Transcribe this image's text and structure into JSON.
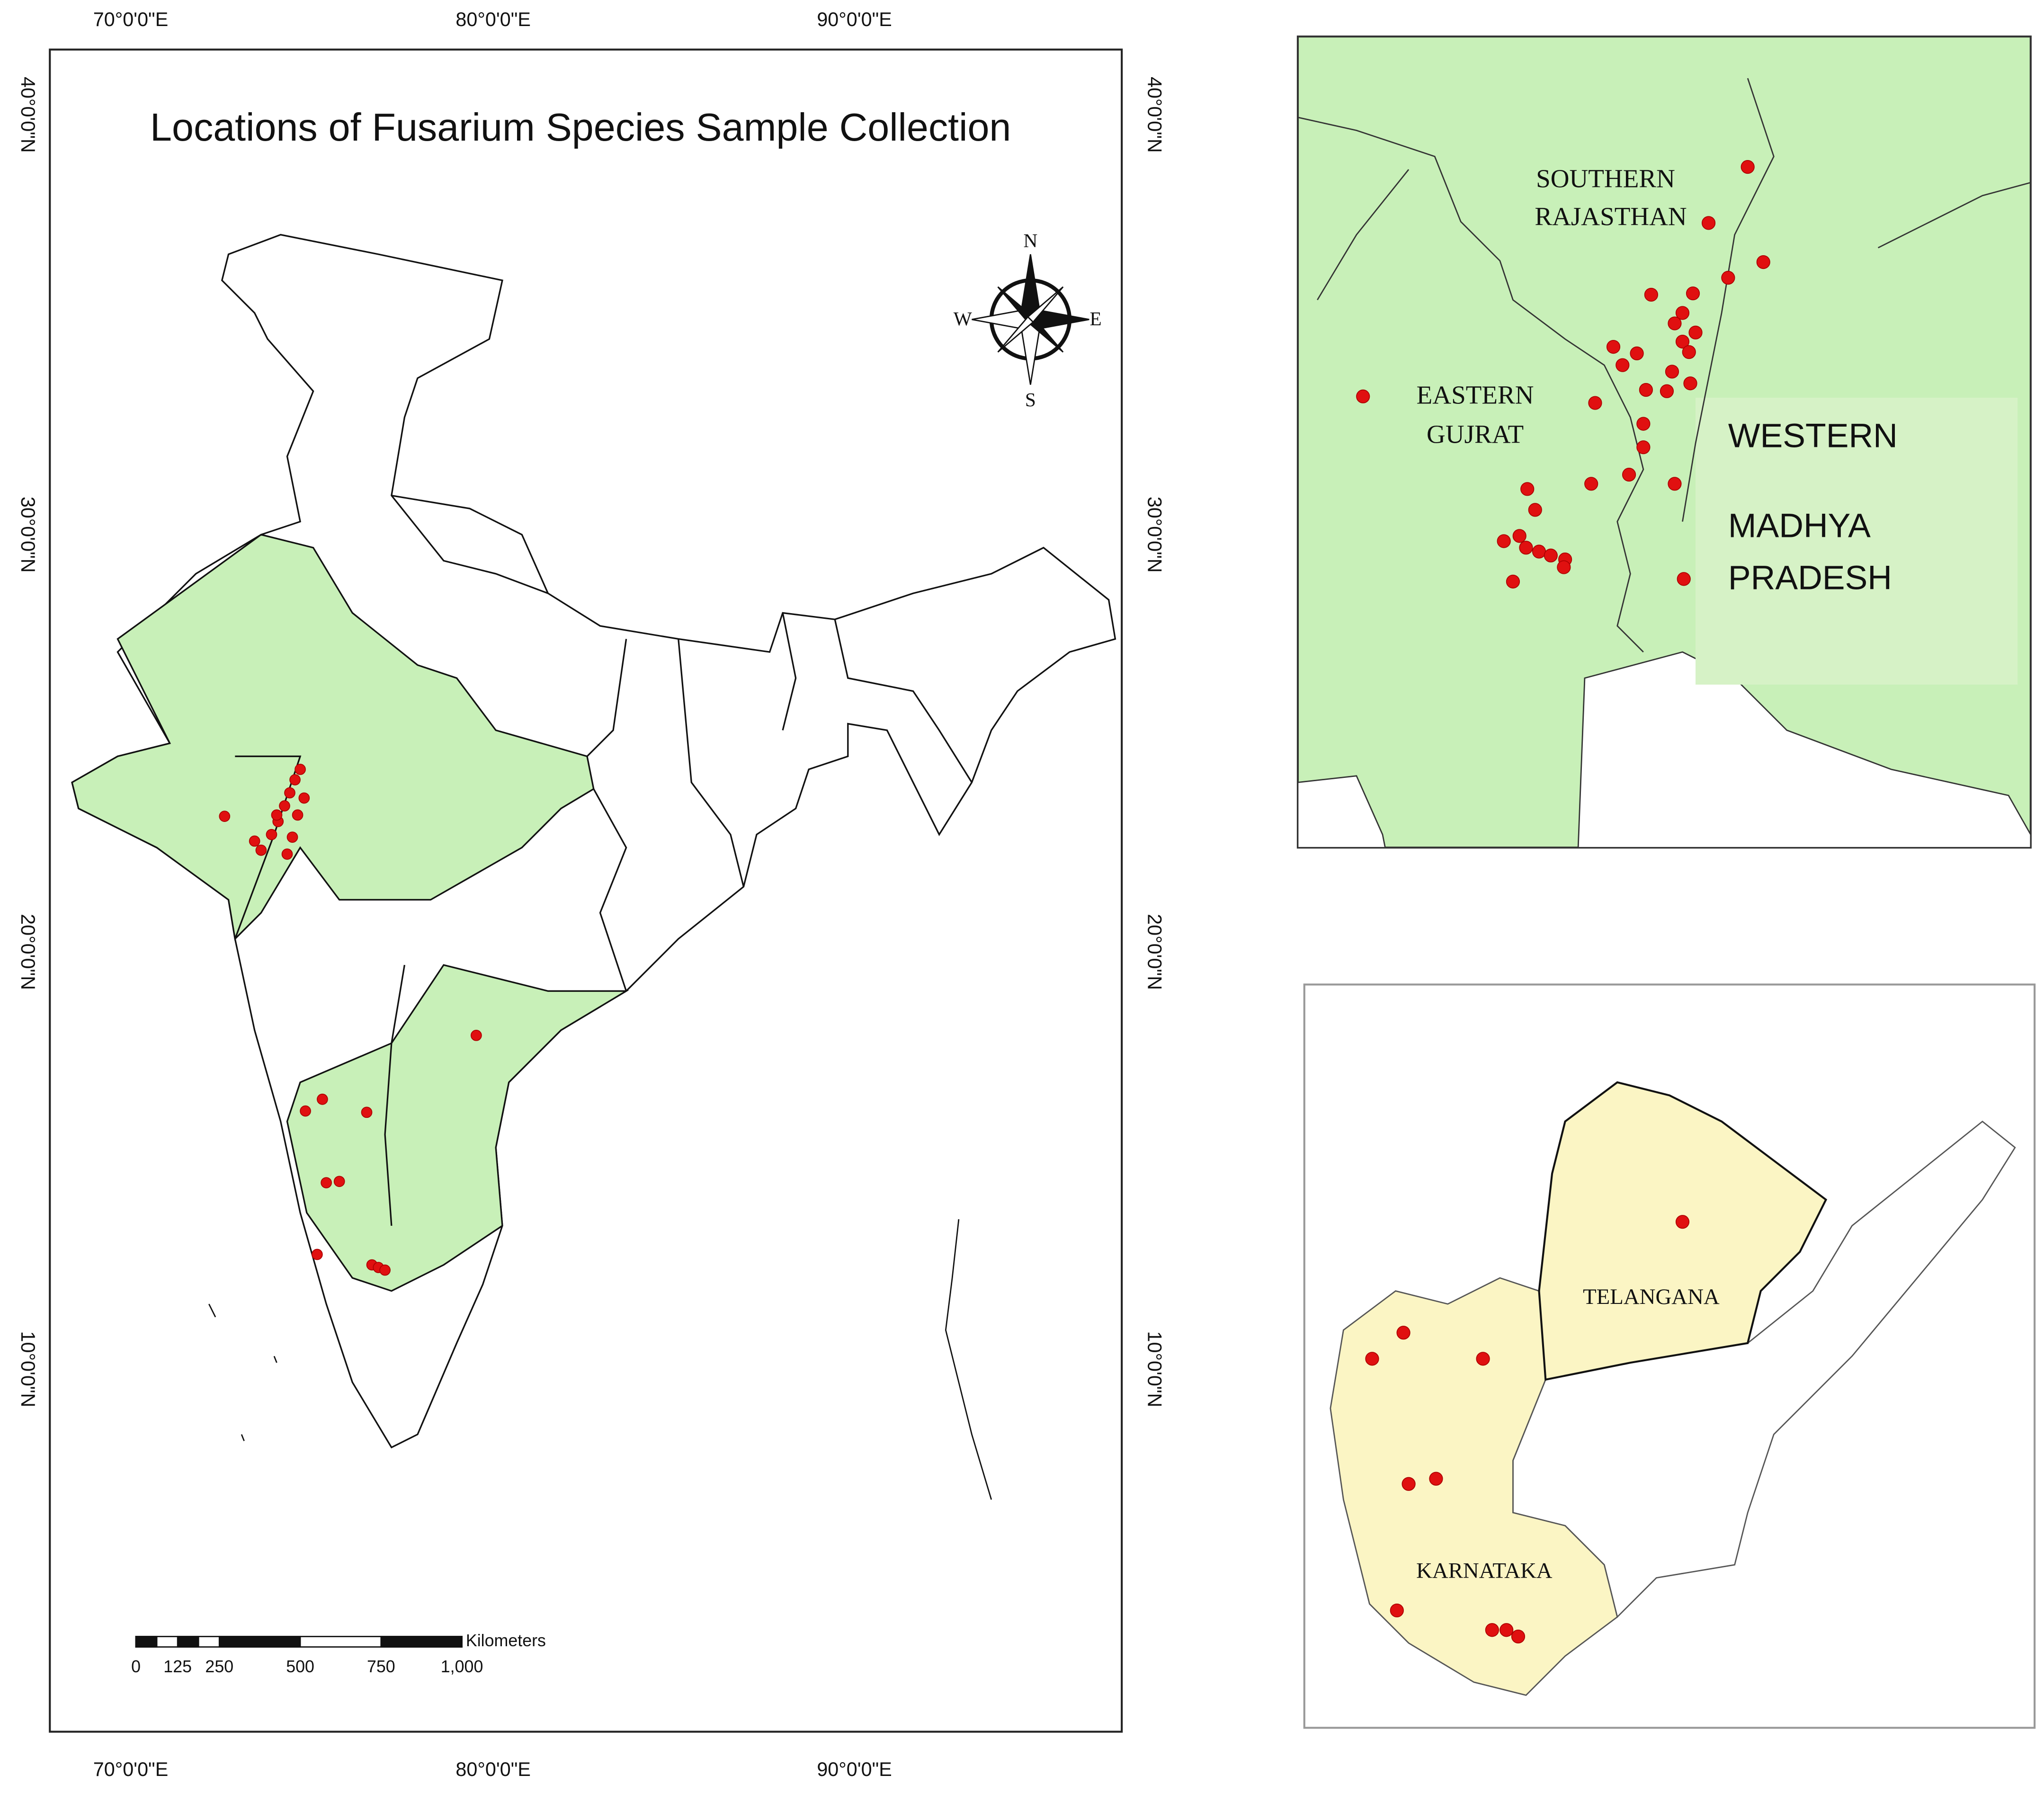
{
  "main_map": {
    "title": "Locations of Fusarium Species Sample Collection",
    "top_longitudes": [
      "70°0'0\"E",
      "80°0'0\"E",
      "90°0'0\"E"
    ],
    "bottom_longitudes": [
      "70°0'0\"E",
      "80°0'0\"E",
      "90°0'0\"E"
    ],
    "left_latitudes": [
      "40°0'0\"N",
      "30°0'0\"N",
      "20°0'0\"N",
      "10°0'0\"N"
    ],
    "right_latitudes": [
      "40°0'0\"N",
      "30°0'0\"N",
      "20°0'0\"N",
      "10°0'0\"N"
    ],
    "compass": {
      "north": "N",
      "south": "S",
      "east": "E",
      "west": "W"
    },
    "scale_bar": {
      "unit": "Kilometers",
      "labels": [
        "0",
        "125",
        "250",
        "500",
        "750",
        "1,000"
      ]
    }
  },
  "inset_north": {
    "labels": [
      "SOUTHERN",
      "RAJASTHAN",
      "EASTERN",
      "GUJRAT",
      "WESTERN",
      "MADHYA",
      "PRADESH"
    ]
  },
  "inset_south": {
    "labels": [
      "TELANGANA",
      "KARNATAKA"
    ]
  }
}
